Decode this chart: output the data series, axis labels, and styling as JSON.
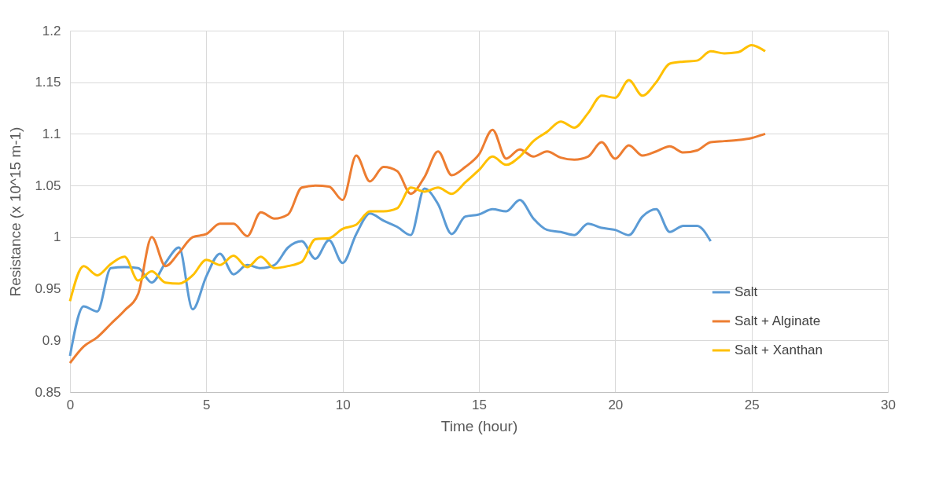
{
  "chart_data": {
    "type": "line",
    "xlabel": "Time (hour)",
    "ylabel": "Resistance (x 10^15 m-1)",
    "xlim": [
      0,
      30
    ],
    "xticks": [
      0,
      5,
      10,
      15,
      20,
      25,
      30
    ],
    "ylim": [
      0.85,
      1.2
    ],
    "yticks": [
      0.85,
      {
        "value": 0.9,
        "label": "0.9"
      },
      0.95,
      {
        "value": 1,
        "label": "1"
      },
      1.05,
      {
        "value": 1.1,
        "label": "1.1"
      },
      1.15,
      {
        "value": 1.2,
        "label": "1.2"
      }
    ],
    "grid": true,
    "legend": "right",
    "marker": "none",
    "line_style": "solid",
    "series": [
      {
        "name": "Salt",
        "color": "#5b9bd5",
        "x": [
          0,
          0.5,
          1,
          1.5,
          2,
          2.5,
          3,
          3.5,
          4,
          4.5,
          5,
          5.5,
          6,
          6.5,
          7,
          7.5,
          8,
          8.5,
          9,
          9.5,
          10,
          10.5,
          11,
          11.5,
          12,
          12.5,
          13,
          13.5,
          14,
          14.5,
          15,
          15.5,
          16,
          16.5,
          17,
          17.5,
          18,
          18.5,
          19,
          19.5,
          20,
          20.5,
          21,
          21.5,
          22,
          22.5,
          23,
          23.5
        ],
        "values": [
          0.885,
          0.933,
          0.928,
          0.97,
          0.971,
          0.97,
          0.956,
          0.975,
          0.99,
          0.93,
          0.962,
          0.984,
          0.964,
          0.973,
          0.97,
          0.973,
          0.99,
          0.996,
          0.979,
          0.997,
          0.975,
          1.003,
          1.023,
          1.016,
          1.01,
          1.002,
          1.047,
          1.032,
          1.003,
          1.02,
          1.022,
          1.027,
          1.025,
          1.036,
          1.018,
          1.007,
          1.005,
          1.002,
          1.013,
          1.009,
          1.007,
          1.002,
          1.02,
          1.027,
          1.005,
          1.011,
          1.011,
          0.996
        ]
      },
      {
        "name": "Salt + Alginate",
        "color": "#ed7d31",
        "x": [
          0,
          0.5,
          1,
          1.5,
          2,
          2.5,
          3,
          3.5,
          4,
          4.5,
          5,
          5.5,
          6,
          6.5,
          7,
          7.5,
          8,
          8.5,
          9,
          9.5,
          10,
          10.5,
          11,
          11.5,
          12,
          12.5,
          13,
          13.5,
          14,
          14.5,
          15,
          15.5,
          16,
          16.5,
          17,
          17.5,
          18,
          18.5,
          19,
          19.5,
          20,
          20.5,
          21,
          21.5,
          22,
          22.5,
          23,
          23.5,
          24,
          24.5,
          25,
          25.5
        ],
        "values": [
          0.878,
          0.894,
          0.903,
          0.916,
          0.929,
          0.945,
          1.0,
          0.972,
          0.985,
          1.0,
          1.003,
          1.013,
          1.013,
          1.001,
          1.024,
          1.018,
          1.022,
          1.048,
          1.05,
          1.049,
          1.036,
          1.079,
          1.054,
          1.068,
          1.064,
          1.042,
          1.058,
          1.083,
          1.06,
          1.068,
          1.08,
          1.104,
          1.076,
          1.085,
          1.078,
          1.083,
          1.077,
          1.075,
          1.078,
          1.092,
          1.076,
          1.089,
          1.079,
          1.083,
          1.088,
          1.082,
          1.084,
          1.092,
          1.093,
          1.094,
          1.096,
          1.1
        ]
      },
      {
        "name": "Salt + Xanthan",
        "color": "#ffc000",
        "x": [
          0,
          0.5,
          1,
          1.5,
          2,
          2.5,
          3,
          3.5,
          4,
          4.5,
          5,
          5.5,
          6,
          6.5,
          7,
          7.5,
          8,
          8.5,
          9,
          9.5,
          10,
          10.5,
          11,
          11.5,
          12,
          12.5,
          13,
          13.5,
          14,
          14.5,
          15,
          15.5,
          16,
          16.5,
          17,
          17.5,
          18,
          18.5,
          19,
          19.5,
          20,
          20.5,
          21,
          21.5,
          22,
          22.5,
          23,
          23.5,
          24,
          24.5,
          25,
          25.5
        ],
        "values": [
          0.938,
          0.972,
          0.963,
          0.974,
          0.981,
          0.958,
          0.967,
          0.956,
          0.955,
          0.963,
          0.978,
          0.973,
          0.982,
          0.971,
          0.981,
          0.97,
          0.972,
          0.976,
          0.998,
          0.999,
          1.008,
          1.012,
          1.025,
          1.025,
          1.028,
          1.048,
          1.044,
          1.048,
          1.042,
          1.053,
          1.065,
          1.078,
          1.07,
          1.078,
          1.093,
          1.102,
          1.112,
          1.106,
          1.12,
          1.137,
          1.135,
          1.152,
          1.137,
          1.15,
          1.168,
          1.17,
          1.171,
          1.18,
          1.178,
          1.179,
          1.186,
          1.18
        ]
      }
    ]
  }
}
